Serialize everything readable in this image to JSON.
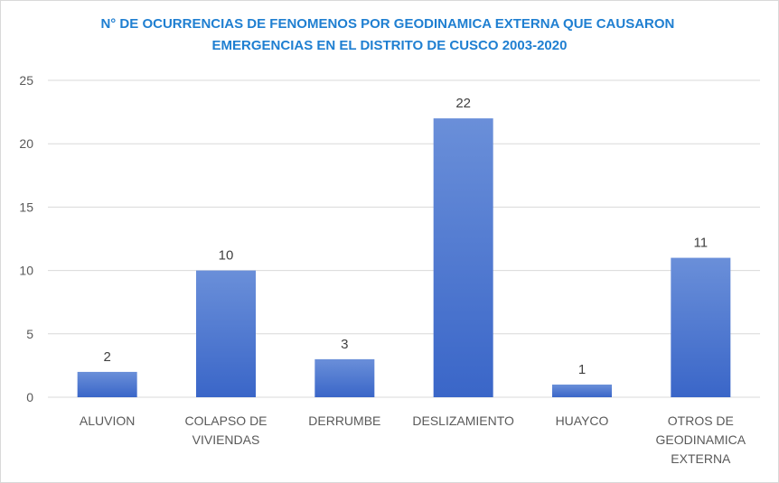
{
  "chart_data": {
    "type": "bar",
    "title": [
      "N° DE OCURRENCIAS DE FENOMENOS POR GEODINAMICA EXTERNA QUE CAUSARON",
      "EMERGENCIAS  EN EL DISTRITO DE CUSCO 2003-2020"
    ],
    "xlabel": "",
    "ylabel": "",
    "categories": [
      [
        "ALUVION"
      ],
      [
        "COLAPSO DE",
        "VIVIENDAS"
      ],
      [
        "DERRUMBE"
      ],
      [
        "DESLIZAMIENTO"
      ],
      [
        "HUAYCO"
      ],
      [
        "OTROS DE",
        "GEODINAMICA",
        "EXTERNA"
      ]
    ],
    "values": [
      2,
      10,
      3,
      22,
      1,
      11
    ],
    "ylim": [
      0,
      25
    ],
    "yticks": [
      0,
      5,
      10,
      15,
      20,
      25
    ],
    "grid": true,
    "legend": "none",
    "colors": {
      "bar_top": "#6a8fd9",
      "bar_bottom": "#3a66c8",
      "title": "#1f7fd1"
    }
  }
}
